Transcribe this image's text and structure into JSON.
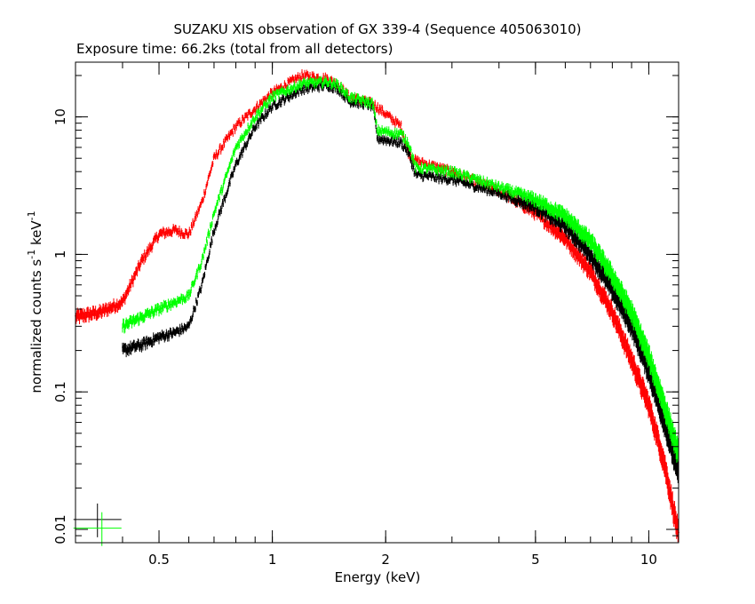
{
  "chart_data": {
    "type": "scatter",
    "title": "SUZAKU XIS observation of GX 339-4 (Sequence 405063010)",
    "subtitle": "Exposure time: 66.2ks (total from all detectors)",
    "xlabel": "Energy (keV)",
    "ylabel_main": "normalized counts s",
    "ylabel_sup1": "-1",
    "ylabel_mid": " keV",
    "ylabel_sup2": "-1",
    "x_scale": "log",
    "y_scale": "log",
    "xlim": [
      0.3,
      12
    ],
    "ylim": [
      0.008,
      25
    ],
    "x_ticks": [
      {
        "value": 0.5,
        "label": "0.5"
      },
      {
        "value": 1,
        "label": "1"
      },
      {
        "value": 2,
        "label": "2"
      },
      {
        "value": 5,
        "label": "5"
      },
      {
        "value": 10,
        "label": "10"
      }
    ],
    "y_ticks": [
      {
        "value": 0.01,
        "label": "0.01"
      },
      {
        "value": 0.1,
        "label": "0.1"
      },
      {
        "value": 1,
        "label": "1"
      },
      {
        "value": 10,
        "label": "10"
      }
    ],
    "grid": false,
    "legend": "none",
    "series": [
      {
        "color": "#ff0000",
        "x": [
          0.3,
          0.35,
          0.4,
          0.45,
          0.5,
          0.55,
          0.6,
          0.65,
          0.7,
          0.8,
          0.9,
          1.0,
          1.2,
          1.4,
          1.5,
          1.6,
          1.75,
          1.85,
          2.0,
          2.2,
          2.3,
          2.4,
          3,
          4,
          5,
          6,
          7,
          8,
          9,
          10,
          11,
          12
        ],
        "y": [
          0.35,
          0.38,
          0.45,
          0.9,
          1.4,
          1.5,
          1.4,
          2.4,
          5.0,
          8.5,
          11.5,
          15,
          20,
          19,
          17,
          14,
          13,
          12.5,
          10.5,
          8.5,
          5.5,
          4.8,
          4.0,
          2.9,
          2.0,
          1.3,
          0.75,
          0.38,
          0.17,
          0.08,
          0.03,
          0.009
        ]
      },
      {
        "color": "#000000",
        "x": [
          0.4,
          0.45,
          0.5,
          0.55,
          0.6,
          0.65,
          0.7,
          0.8,
          0.9,
          1.0,
          1.2,
          1.4,
          1.5,
          1.6,
          1.75,
          1.85,
          1.9,
          2.0,
          2.2,
          2.3,
          2.4,
          3,
          4,
          5,
          6,
          7,
          8,
          9,
          10,
          11,
          12
        ],
        "y": [
          0.2,
          0.22,
          0.25,
          0.27,
          0.3,
          0.6,
          1.5,
          4.5,
          8.5,
          12,
          16,
          17,
          16,
          13,
          12.5,
          12,
          7.0,
          6.8,
          6.5,
          5.5,
          3.8,
          3.5,
          2.8,
          2.2,
          1.6,
          1.0,
          0.55,
          0.3,
          0.14,
          0.06,
          0.025
        ]
      },
      {
        "color": "#00ff00",
        "x": [
          0.4,
          0.45,
          0.5,
          0.55,
          0.6,
          0.65,
          0.7,
          0.8,
          0.9,
          1.0,
          1.2,
          1.4,
          1.5,
          1.6,
          1.75,
          1.85,
          1.9,
          2.0,
          2.2,
          2.3,
          2.4,
          3,
          4,
          5,
          6,
          7,
          8,
          9,
          10,
          11,
          12
        ],
        "y": [
          0.3,
          0.35,
          0.4,
          0.45,
          0.5,
          0.9,
          2.0,
          6.0,
          10,
          14,
          17.5,
          18,
          17,
          14,
          13,
          12.5,
          8,
          7.8,
          7.5,
          6.5,
          4.3,
          4.0,
          3.1,
          2.5,
          1.9,
          1.25,
          0.7,
          0.38,
          0.18,
          0.08,
          0.035
        ]
      }
    ],
    "key_markers": [
      {
        "color": "#000000",
        "x": 0.345,
        "y": 0.0118
      },
      {
        "color": "#00ff00",
        "x": 0.345,
        "y": 0.0102
      }
    ]
  }
}
